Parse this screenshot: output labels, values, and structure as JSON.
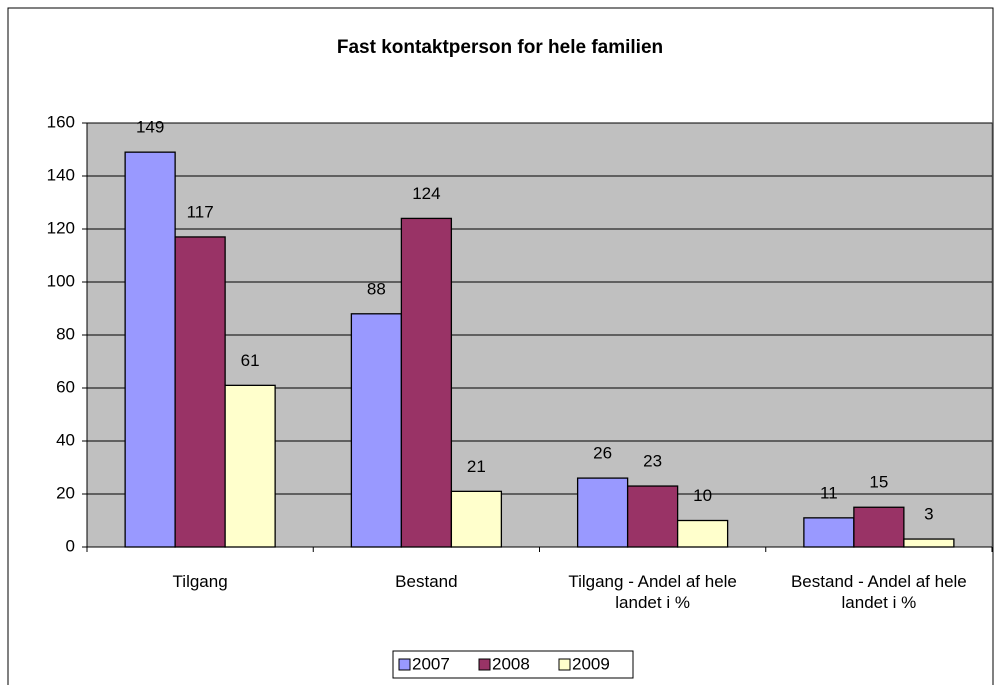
{
  "chart_data": {
    "type": "bar",
    "title": "Fast kontaktperson for hele familien",
    "categories": [
      "Tilgang",
      "Bestand",
      "Tilgang - Andel af hele landet i %",
      "Bestand - Andel af hele landet i %"
    ],
    "series": [
      {
        "name": "2007",
        "color": "#9999ff",
        "values": [
          149,
          88,
          26,
          11
        ]
      },
      {
        "name": "2008",
        "color": "#993366",
        "values": [
          117,
          124,
          23,
          15
        ]
      },
      {
        "name": "2009",
        "color": "#ffffcc",
        "values": [
          61,
          21,
          10,
          3
        ]
      }
    ],
    "ylim": [
      0,
      160
    ],
    "yticks": [
      0,
      20,
      40,
      60,
      80,
      100,
      120,
      140,
      160
    ],
    "grid": true,
    "legend": "bottom"
  }
}
